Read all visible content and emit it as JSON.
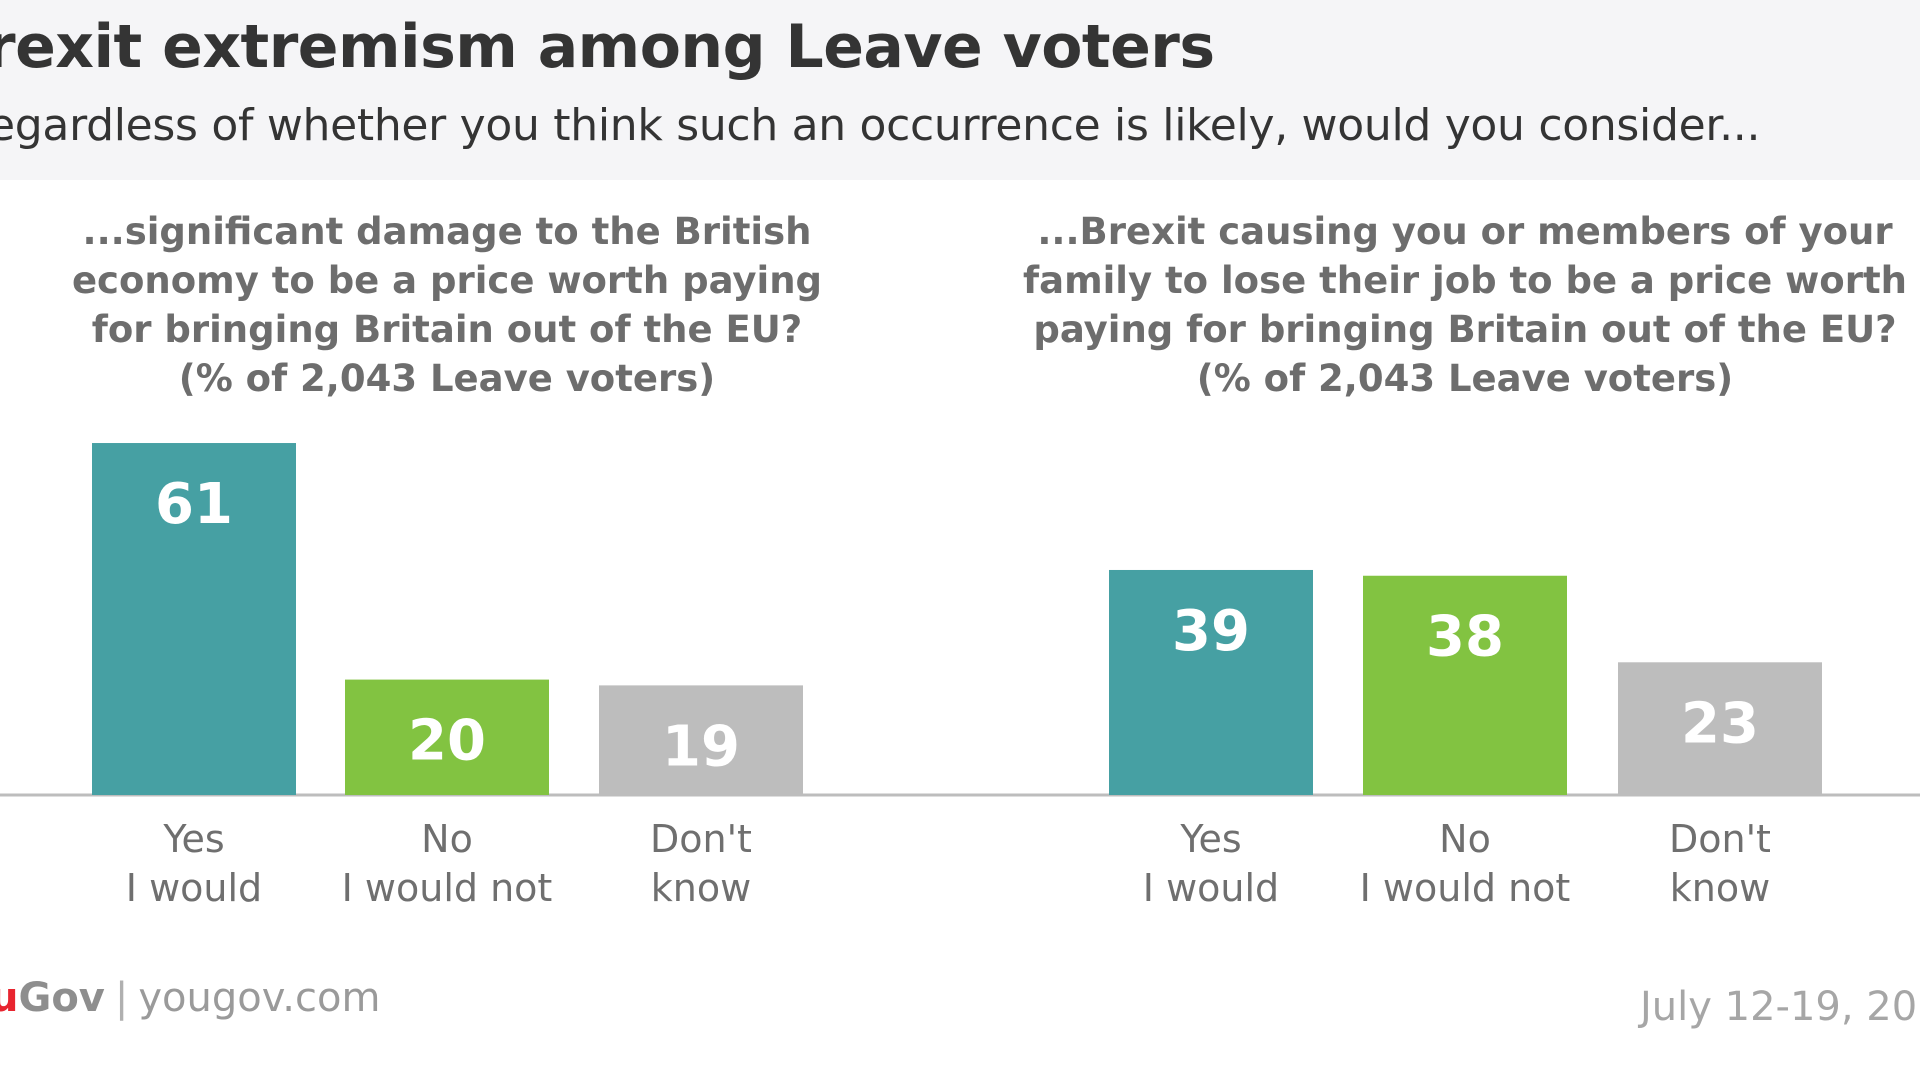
{
  "header": {
    "title": "rexit extremism among Leave voters",
    "subtitle": "egardless of whether you think such an occurrence is likely, would you consider..."
  },
  "footer": {
    "brand_red": "u",
    "brand": "Gov",
    "site": "yougov.com",
    "date": "July 12-19, 20"
  },
  "colors": {
    "yes": "#46a0a3",
    "no": "#82c341",
    "dont_know": "#bdbdbd",
    "axis": "#bdbdbd",
    "question_text": "#6d6d6d",
    "category_text": "#6f6f6f",
    "value_text": "#ffffff"
  },
  "chart_data": [
    {
      "type": "bar",
      "question": [
        "...significant damage to the British",
        "economy to be a price worth paying",
        "for bringing Britain out of the EU?",
        "(% of 2,043 Leave voters)"
      ],
      "categories": [
        [
          "Yes",
          "I would"
        ],
        [
          "No",
          "I would not"
        ],
        [
          "Don't",
          "know"
        ]
      ],
      "values": [
        61,
        20,
        19
      ],
      "value_labels": [
        "61",
        "20",
        "19"
      ],
      "series_colors": [
        "#46a0a3",
        "#82c341",
        "#bdbdbd"
      ],
      "ylim": [
        0,
        61
      ]
    },
    {
      "type": "bar",
      "question": [
        "...Brexit causing you or members of your",
        "family to lose their job to be a price worth",
        "paying for bringing Britain out of the EU?",
        "(% of 2,043 Leave voters)"
      ],
      "categories": [
        [
          "Yes",
          "I would"
        ],
        [
          "No",
          "I would not"
        ],
        [
          "Don't",
          "know"
        ]
      ],
      "values": [
        39,
        38,
        23
      ],
      "value_labels": [
        "39",
        "38",
        "23"
      ],
      "series_colors": [
        "#46a0a3",
        "#82c341",
        "#bdbdbd"
      ],
      "ylim": [
        0,
        61
      ]
    }
  ]
}
